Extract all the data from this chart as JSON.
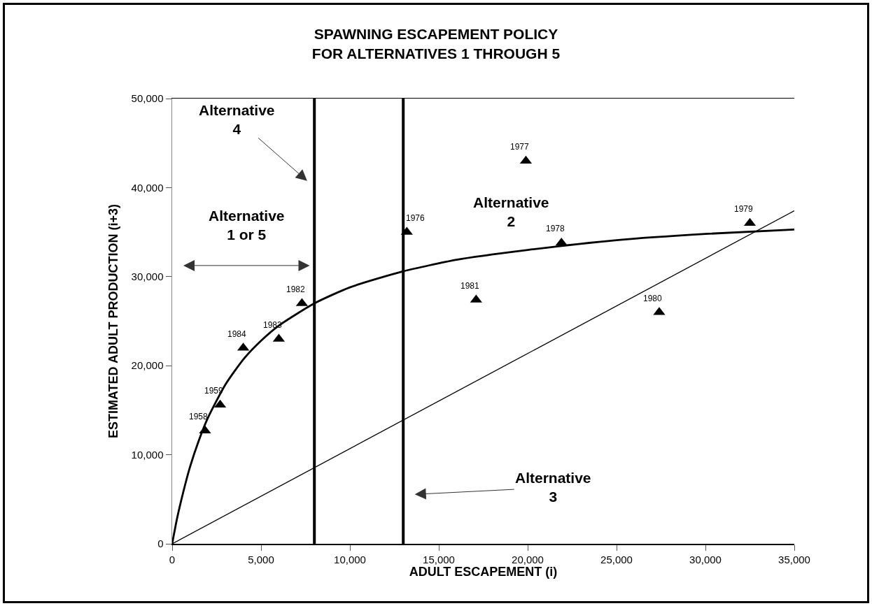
{
  "chart_data": {
    "type": "scatter",
    "title": "SPAWNING ESCAPEMENT POLICY\nFOR ALTERNATIVES 1 THROUGH 5",
    "xlabel": "ADULT ESCAPEMENT (i)",
    "ylabel": "ESTIMATED ADULT PRODUCTION (i+3)",
    "xlim": [
      0,
      35000
    ],
    "xticks": [
      {
        "value": 0,
        "label": "0"
      },
      {
        "value": 5000,
        "label": "5,000"
      },
      {
        "value": 10000,
        "label": "10,000"
      },
      {
        "value": 15000,
        "label": "15,000"
      },
      {
        "value": 20000,
        "label": "20,000"
      },
      {
        "value": 25000,
        "label": "25,000"
      },
      {
        "value": 30000,
        "label": "30,000"
      },
      {
        "value": 35000,
        "label": "35,000"
      }
    ],
    "ylim": [
      0,
      50000
    ],
    "yticks": [
      {
        "value": 0,
        "label": "0"
      },
      {
        "value": 10000,
        "label": "10,000"
      },
      {
        "value": 20000,
        "label": "20,000"
      },
      {
        "value": 30000,
        "label": "30,000"
      },
      {
        "value": 40000,
        "label": "40,000"
      },
      {
        "value": 50000,
        "label": "50,000"
      }
    ],
    "grid": false,
    "series": [
      {
        "marker": "triangle",
        "color": "#000000",
        "x": [
          1850,
          2700,
          4000,
          6000,
          7300,
          13200,
          19900,
          21900,
          32500,
          27400,
          17100
        ],
        "values": [
          12700,
          15600,
          22000,
          23000,
          27000,
          35000,
          43000,
          33800,
          36000,
          26000,
          27400
        ]
      },
      {
        "type": "line",
        "marker": "none",
        "color": "#000000",
        "x": [
          0,
          250,
          500,
          1000,
          1500,
          2000,
          3000,
          4000,
          5000,
          6000,
          8000,
          10000,
          13000,
          16000,
          20000,
          25000,
          30000,
          35000
        ],
        "values": [
          0,
          2600,
          4800,
          8600,
          11600,
          14100,
          17900,
          20700,
          22800,
          24500,
          27000,
          28800,
          30600,
          31900,
          33000,
          34100,
          34800,
          35300
        ]
      },
      {
        "type": "line",
        "marker": "none",
        "line_style": "solid",
        "color": "#000000",
        "x": [
          0,
          35000
        ],
        "values": [
          0,
          37400
        ]
      }
    ],
    "ref_lines": [
      {
        "axis": "x",
        "value": 8000,
        "color": "#000000"
      },
      {
        "axis": "x",
        "value": 13000,
        "color": "#000000"
      }
    ],
    "annotations": [
      "Alternative\n4",
      "Alternative\n1 or 5",
      "Alternative\n2",
      "Alternative\n3",
      {
        "text": "1958",
        "x": 1850,
        "y": 12700
      },
      {
        "text": "1959",
        "x": 2700,
        "y": 15600
      },
      {
        "text": "1984",
        "x": 4000,
        "y": 22000
      },
      {
        "text": "1983",
        "x": 6000,
        "y": 23000
      },
      {
        "text": "1982",
        "x": 7300,
        "y": 27000
      },
      {
        "text": "1976",
        "x": 13200,
        "y": 35000
      },
      {
        "text": "1977",
        "x": 19900,
        "y": 43000
      },
      {
        "text": "1978",
        "x": 21900,
        "y": 33800
      },
      {
        "text": "1979",
        "x": 32500,
        "y": 36000
      },
      {
        "text": "1980",
        "x": 27400,
        "y": 26000
      },
      {
        "text": "1981",
        "x": 17100,
        "y": 27400
      }
    ]
  }
}
